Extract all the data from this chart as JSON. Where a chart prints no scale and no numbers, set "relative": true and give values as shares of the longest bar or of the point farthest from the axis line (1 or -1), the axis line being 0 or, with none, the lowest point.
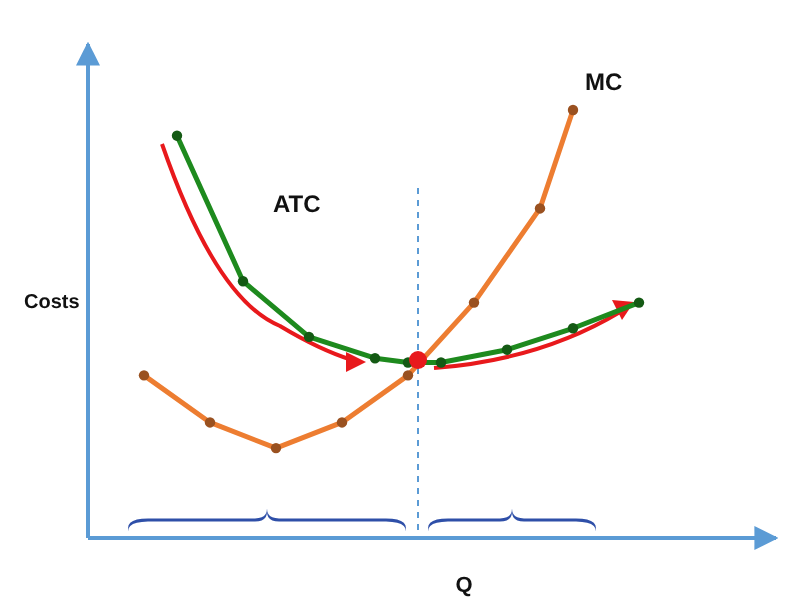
{
  "chart_data": {
    "type": "line",
    "relative": true,
    "xlabel": "Q",
    "ylabel": "Costs",
    "categories": [
      null,
      null,
      null,
      null,
      null,
      null,
      null,
      null,
      null,
      null,
      null,
      null,
      null,
      null,
      null,
      null
    ],
    "marker": "circle",
    "series": [
      {
        "name": "MC",
        "color": "#ed7d31",
        "values": [
          0.38,
          null,
          0.27,
          null,
          0.21,
          null,
          0.27,
          null,
          0.38,
          null,
          0.55,
          null,
          0.77,
          1,
          null,
          null
        ]
      },
      {
        "name": "ATC",
        "color": "#1e8a1e",
        "values": [
          null,
          0.94,
          null,
          0.6,
          null,
          0.47,
          null,
          0.42,
          0.41,
          0.41,
          null,
          0.44,
          null,
          0.49,
          null,
          0.55
        ]
      }
    ]
  }
}
